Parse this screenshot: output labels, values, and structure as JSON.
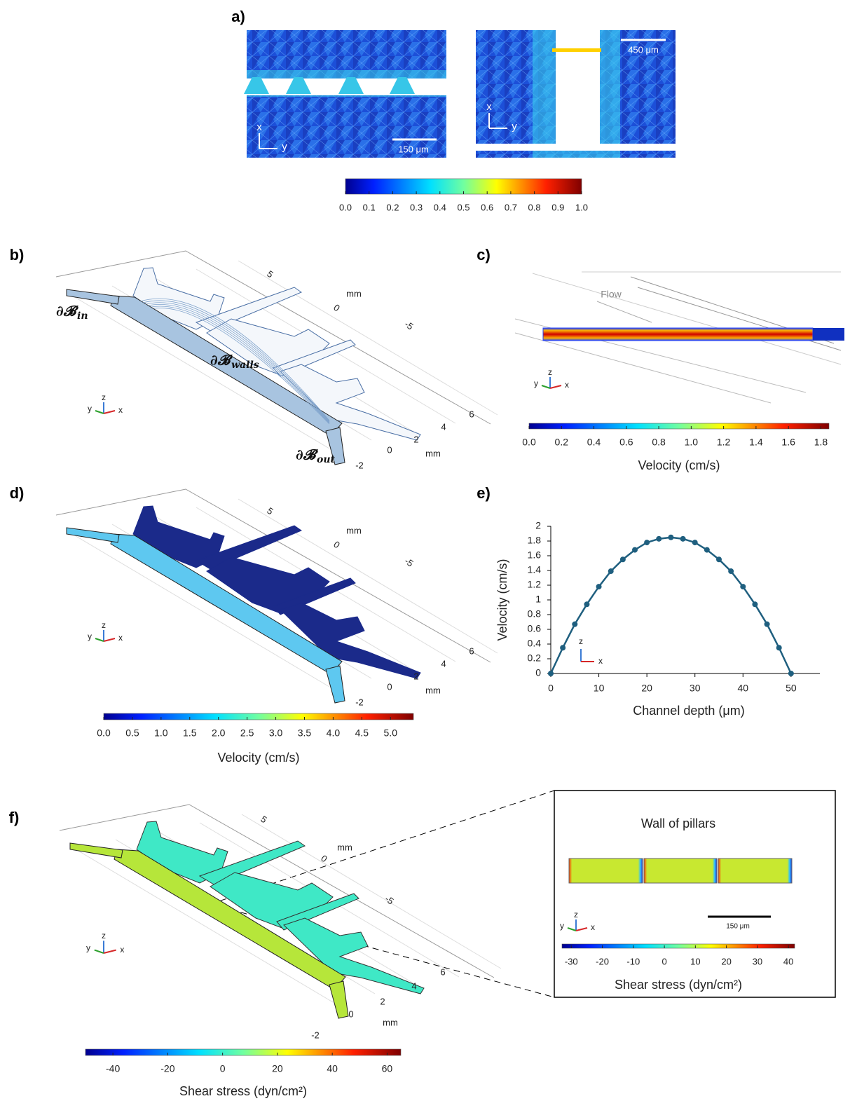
{
  "panels": {
    "a": {
      "label": "a)",
      "scale_bar_left": "150 μm",
      "scale_bar_right": "450 μm",
      "triad_left": {
        "x": "x",
        "y": "y"
      },
      "triad_right": {
        "x": "x",
        "y": "y"
      },
      "colorbar": {
        "lim": [
          0,
          1
        ],
        "ticks": [
          {
            "value": 0,
            "label": "0.0"
          },
          0.1,
          0.2,
          0.3,
          0.4,
          0.5,
          0.6,
          0.7,
          0.8,
          0.9,
          {
            "value": 1,
            "label": "1.0"
          }
        ]
      }
    },
    "b": {
      "label": "b)",
      "boundaries": [
        {
          "symbol": "∂𝓑",
          "subscript": "in"
        },
        {
          "symbol": "∂𝓑",
          "subscript": "walls"
        },
        {
          "symbol": "∂𝓑",
          "subscript": "out"
        }
      ],
      "triad": {
        "x": "x",
        "y": "y",
        "z": "z"
      },
      "axis_labels": {
        "upper_ticks": [
          5,
          0,
          -5
        ],
        "upper_unit": "mm",
        "lower_ticks": [
          6,
          4,
          2,
          0,
          -2
        ],
        "lower_unit": "mm"
      }
    },
    "c": {
      "label": "c)",
      "flow": "Flow",
      "triad": {
        "x": "x",
        "y": "y",
        "z": "z"
      },
      "colorbar": {
        "title": "Velocity (cm/s)",
        "lim": [
          0,
          1.85
        ],
        "ticks": [
          {
            "value": 0,
            "label": "0.0"
          },
          0.2,
          0.4,
          0.6,
          0.8,
          {
            "value": 1,
            "label": "1.0"
          },
          1.2,
          1.4,
          1.6,
          1.8
        ]
      }
    },
    "d": {
      "label": "d)",
      "triad": {
        "x": "x",
        "y": "y",
        "z": "z"
      },
      "axis_labels": {
        "upper_ticks": [
          5,
          0,
          -5
        ],
        "upper_unit": "mm",
        "lower_ticks": [
          6,
          4,
          2,
          0,
          -2
        ],
        "lower_unit": "mm"
      },
      "colorbar": {
        "title": "Velocity (cm/s)",
        "lim": [
          0,
          5.4
        ],
        "ticks": [
          {
            "value": 0,
            "label": "0.0"
          },
          0.5,
          {
            "value": 1,
            "label": "1.0"
          },
          1.5,
          {
            "value": 2,
            "label": "2.0"
          },
          2.5,
          {
            "value": 3,
            "label": "3.0"
          },
          3.5,
          {
            "value": 4,
            "label": "4.0"
          },
          4.5,
          {
            "value": 5,
            "label": "5.0"
          }
        ]
      }
    },
    "e": {
      "label": "e)",
      "triad": {
        "x": "x",
        "z": "z"
      }
    },
    "f": {
      "label": "f)",
      "triad": {
        "x": "x",
        "y": "y",
        "z": "z"
      },
      "axis_labels": {
        "upper_ticks": [
          5,
          0,
          -5
        ],
        "upper_unit": "mm",
        "lower_ticks": [
          6,
          4,
          2,
          0,
          -2
        ],
        "lower_unit": "mm"
      },
      "colorbar": {
        "title": "Shear stress (dyn/cm²)",
        "lim": [
          -50,
          65
        ],
        "ticks": [
          -40,
          -20,
          0,
          20,
          40,
          60
        ]
      },
      "inset": {
        "title": "Wall of pillars",
        "scale_bar": "150 μm",
        "triad": {
          "x": "x",
          "y": "y",
          "z": "z"
        },
        "colorbar": {
          "title": "Shear stress (dyn/cm²)",
          "lim": [
            -33,
            42
          ],
          "ticks": [
            -30,
            -20,
            -10,
            0,
            10,
            20,
            30,
            40
          ]
        }
      }
    }
  },
  "chart_data": {
    "type": "scatter",
    "x_label": "Channel depth (μm)",
    "y_label": "Velocity (cm/s)",
    "color": "#1f5f7f",
    "x": [
      0,
      2.5,
      5,
      7.5,
      10,
      12.5,
      15,
      17.5,
      20,
      22.5,
      25,
      27.5,
      30,
      32.5,
      35,
      37.5,
      40,
      42.5,
      45,
      47.5,
      50
    ],
    "values": [
      0,
      0.35,
      0.67,
      0.94,
      1.18,
      1.39,
      1.55,
      1.68,
      1.78,
      1.83,
      1.85,
      1.83,
      1.78,
      1.68,
      1.55,
      1.39,
      1.18,
      0.94,
      0.67,
      0.35,
      0
    ],
    "xlim": [
      0,
      56
    ],
    "ylim": [
      0,
      2
    ],
    "xticks": [
      0,
      10,
      20,
      30,
      40,
      50
    ],
    "yticks": [
      0,
      0.2,
      0.4,
      0.6,
      0.8,
      1,
      1.2,
      1.4,
      1.6,
      1.8,
      2
    ]
  }
}
